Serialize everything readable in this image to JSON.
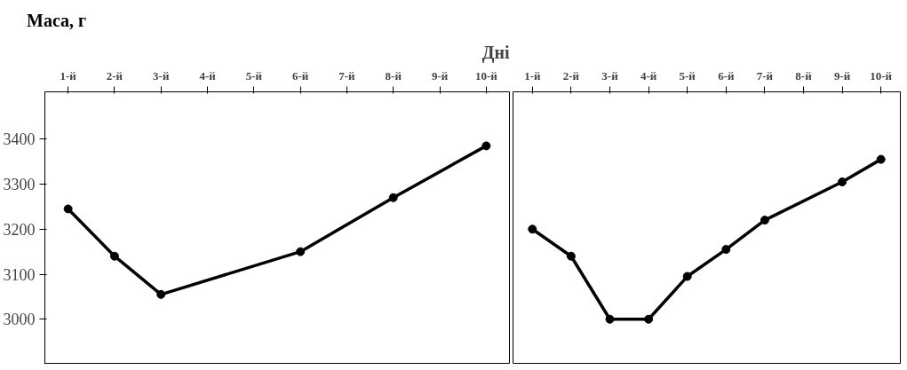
{
  "chart_data": [
    {
      "type": "line",
      "title": "Дні",
      "ylabel": "Маса, г",
      "categories": [
        "1-й",
        "2-й",
        "3-й",
        "4-й",
        "5-й",
        "6-й",
        "7-й",
        "8-й",
        "9-й",
        "10-й"
      ],
      "series": [
        {
          "color": "#000000",
          "x": [
            "1-й",
            "2-й",
            "3-й",
            "6-й",
            "8-й",
            "10-й"
          ],
          "values": [
            3245,
            3140,
            3055,
            3150,
            3270,
            3385
          ]
        }
      ],
      "ylim": [
        2900,
        3505
      ],
      "yticks": [
        3000,
        3100,
        3200,
        3300,
        3400
      ],
      "grid": false,
      "marker": "circle",
      "line_style": "solid"
    },
    {
      "type": "line",
      "categories": [
        "1-й",
        "2-й",
        "3-й",
        "4-й",
        "5-й",
        "6-й",
        "7-й",
        "8-й",
        "9-й",
        "10-й"
      ],
      "series": [
        {
          "color": "#000000",
          "x": [
            "1-й",
            "2-й",
            "3-й",
            "4-й",
            "5-й",
            "6-й",
            "7-й",
            "9-й",
            "10-й"
          ],
          "values": [
            3200,
            3140,
            3000,
            3000,
            3095,
            3155,
            3220,
            3305,
            3355
          ]
        }
      ],
      "ylim": [
        2900,
        3505
      ],
      "yticks": [
        3000,
        3100,
        3200,
        3300,
        3400
      ],
      "tick_labels": "x",
      "grid": false,
      "marker": "circle",
      "line_style": "solid"
    }
  ]
}
